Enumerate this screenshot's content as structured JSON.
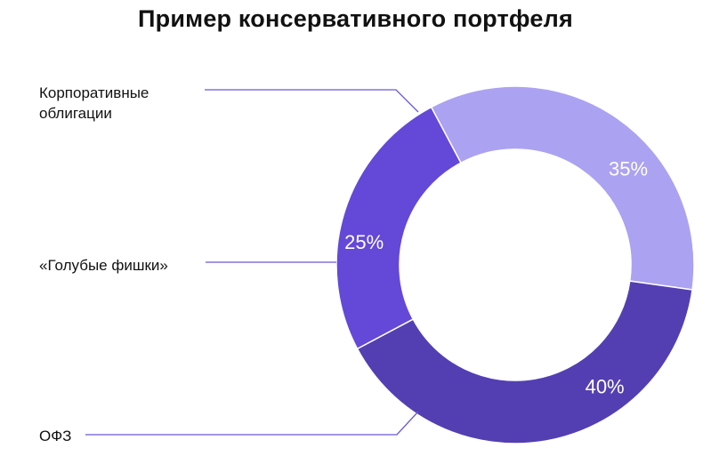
{
  "chart_data": {
    "type": "pie",
    "title": "Пример консервативного портфеля",
    "slices": [
      {
        "label_lines": [
          "Корпоративные",
          "облигации"
        ],
        "value": 35,
        "value_label": "35%",
        "color": "#aba2f2"
      },
      {
        "label_lines": [
          "ОФЗ"
        ],
        "value": 40,
        "value_label": "40%",
        "color": "#533fb2"
      },
      {
        "label_lines": [
          "«Голубые фишки»"
        ],
        "value": 25,
        "value_label": "25%",
        "color": "#6448d8"
      }
    ],
    "legend_placement": "left",
    "leader_line_color": "#6a58d9"
  }
}
